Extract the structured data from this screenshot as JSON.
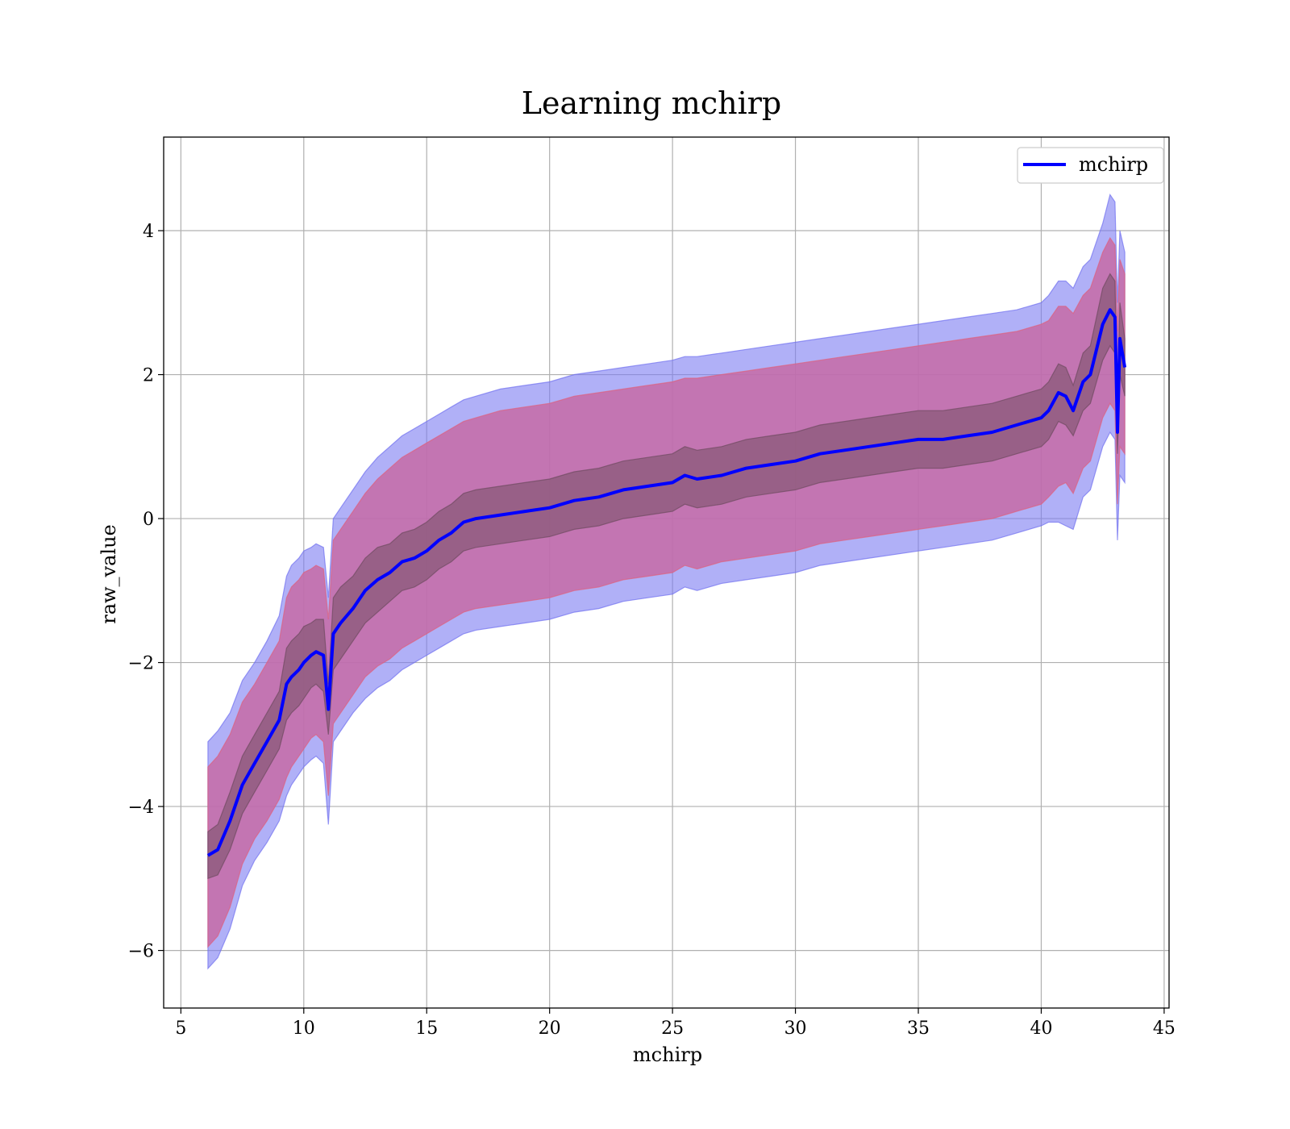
{
  "chart_data": {
    "type": "line",
    "title": "Learning mchirp",
    "xlabel": "mchirp",
    "ylabel": "raw_value",
    "xlim": [
      4.3,
      45.2
    ],
    "ylim": [
      -6.8,
      5.3
    ],
    "xticks": [
      5,
      10,
      15,
      20,
      25,
      30,
      35,
      40,
      45
    ],
    "yticks": [
      -6,
      -4,
      -2,
      0,
      2,
      4
    ],
    "xtick_labels": [
      "5",
      "10",
      "15",
      "20",
      "25",
      "30",
      "35",
      "40",
      "45"
    ],
    "ytick_labels": [
      "−6",
      "−4",
      "−2",
      "0",
      "2",
      "4"
    ],
    "grid": true,
    "legend": {
      "position": "upper-right",
      "entries": [
        {
          "label": "mchirp",
          "color": "#0000ff"
        }
      ]
    },
    "colors": {
      "line": "#0000ff",
      "band_outer": "#7b7bf2",
      "band_mid": "#c76ba6",
      "band_inner": "#8a5a78"
    },
    "series": [
      {
        "name": "mchirp",
        "x": [
          6.1,
          6.5,
          7.0,
          7.5,
          8.0,
          8.5,
          9.0,
          9.3,
          9.5,
          9.8,
          10.0,
          10.3,
          10.5,
          10.8,
          11.0,
          11.2,
          11.5,
          12.0,
          12.5,
          13.0,
          13.5,
          14.0,
          14.5,
          15.0,
          15.5,
          16.0,
          16.5,
          17.0,
          18.0,
          19.0,
          20.0,
          20.5,
          21.0,
          22.0,
          23.0,
          24.0,
          25.0,
          25.5,
          26.0,
          27.0,
          28.0,
          29.0,
          30.0,
          31.0,
          32.0,
          33.0,
          34.0,
          35.0,
          36.0,
          37.0,
          38.0,
          39.0,
          40.0,
          40.3,
          40.7,
          41.0,
          41.3,
          41.7,
          42.0,
          42.5,
          42.8,
          43.0,
          43.1,
          43.2,
          43.4
        ],
        "y": [
          -4.68,
          -4.6,
          -4.2,
          -3.7,
          -3.4,
          -3.1,
          -2.8,
          -2.3,
          -2.2,
          -2.1,
          -2.0,
          -1.9,
          -1.85,
          -1.9,
          -2.65,
          -1.6,
          -1.45,
          -1.25,
          -1.0,
          -0.85,
          -0.75,
          -0.6,
          -0.55,
          -0.45,
          -0.3,
          -0.2,
          -0.05,
          0.0,
          0.05,
          0.1,
          0.15,
          0.2,
          0.25,
          0.3,
          0.4,
          0.45,
          0.5,
          0.6,
          0.55,
          0.6,
          0.7,
          0.75,
          0.8,
          0.9,
          0.95,
          1.0,
          1.05,
          1.1,
          1.1,
          1.15,
          1.2,
          1.3,
          1.4,
          1.5,
          1.75,
          1.7,
          1.5,
          1.9,
          2.0,
          2.7,
          2.9,
          2.8,
          1.2,
          2.5,
          2.1
        ],
        "inner_lower": [
          -5.0,
          -4.95,
          -4.6,
          -4.1,
          -3.8,
          -3.5,
          -3.2,
          -2.8,
          -2.7,
          -2.6,
          -2.5,
          -2.35,
          -2.3,
          -2.4,
          -3.0,
          -2.1,
          -1.95,
          -1.7,
          -1.45,
          -1.3,
          -1.15,
          -1.0,
          -0.95,
          -0.85,
          -0.7,
          -0.6,
          -0.45,
          -0.4,
          -0.35,
          -0.3,
          -0.25,
          -0.2,
          -0.15,
          -0.1,
          0.0,
          0.05,
          0.1,
          0.2,
          0.15,
          0.2,
          0.3,
          0.35,
          0.4,
          0.5,
          0.55,
          0.6,
          0.65,
          0.7,
          0.7,
          0.75,
          0.8,
          0.9,
          1.0,
          1.1,
          1.35,
          1.3,
          1.15,
          1.5,
          1.6,
          2.2,
          2.4,
          2.3,
          0.9,
          2.0,
          1.7
        ],
        "inner_upper": [
          -4.35,
          -4.25,
          -3.8,
          -3.3,
          -3.0,
          -2.7,
          -2.4,
          -1.8,
          -1.7,
          -1.6,
          -1.5,
          -1.45,
          -1.4,
          -1.4,
          -2.3,
          -1.1,
          -0.95,
          -0.8,
          -0.55,
          -0.4,
          -0.35,
          -0.2,
          -0.15,
          -0.05,
          0.1,
          0.2,
          0.35,
          0.4,
          0.45,
          0.5,
          0.55,
          0.6,
          0.65,
          0.7,
          0.8,
          0.85,
          0.9,
          1.0,
          0.95,
          1.0,
          1.1,
          1.15,
          1.2,
          1.3,
          1.35,
          1.4,
          1.45,
          1.5,
          1.5,
          1.55,
          1.6,
          1.7,
          1.8,
          1.9,
          2.15,
          2.1,
          1.85,
          2.3,
          2.4,
          3.2,
          3.4,
          3.3,
          1.5,
          3.0,
          2.5
        ],
        "mid_lower": [
          -5.95,
          -5.8,
          -5.4,
          -4.8,
          -4.45,
          -4.2,
          -3.9,
          -3.6,
          -3.45,
          -3.3,
          -3.2,
          -3.05,
          -3.0,
          -3.1,
          -3.85,
          -2.85,
          -2.7,
          -2.45,
          -2.2,
          -2.05,
          -1.95,
          -1.8,
          -1.7,
          -1.6,
          -1.5,
          -1.4,
          -1.3,
          -1.25,
          -1.2,
          -1.15,
          -1.1,
          -1.05,
          -1.0,
          -0.95,
          -0.85,
          -0.8,
          -0.75,
          -0.65,
          -0.7,
          -0.6,
          -0.55,
          -0.5,
          -0.45,
          -0.35,
          -0.3,
          -0.25,
          -0.2,
          -0.15,
          -0.1,
          -0.05,
          0.0,
          0.1,
          0.2,
          0.3,
          0.45,
          0.5,
          0.35,
          0.7,
          0.8,
          1.4,
          1.6,
          1.5,
          0.2,
          1.0,
          0.9
        ],
        "mid_upper": [
          -3.45,
          -3.3,
          -3.0,
          -2.55,
          -2.3,
          -2.0,
          -1.7,
          -1.1,
          -0.95,
          -0.85,
          -0.75,
          -0.7,
          -0.65,
          -0.7,
          -1.4,
          -0.3,
          -0.15,
          0.1,
          0.35,
          0.55,
          0.7,
          0.85,
          0.95,
          1.05,
          1.15,
          1.25,
          1.35,
          1.4,
          1.5,
          1.55,
          1.6,
          1.65,
          1.7,
          1.75,
          1.8,
          1.85,
          1.9,
          1.95,
          1.95,
          2.0,
          2.05,
          2.1,
          2.15,
          2.2,
          2.25,
          2.3,
          2.35,
          2.4,
          2.45,
          2.5,
          2.55,
          2.6,
          2.7,
          2.75,
          2.95,
          2.95,
          2.85,
          3.1,
          3.2,
          3.7,
          3.9,
          3.8,
          2.6,
          3.6,
          3.4
        ],
        "outer_lower": [
          -6.25,
          -6.1,
          -5.7,
          -5.1,
          -4.75,
          -4.5,
          -4.2,
          -3.85,
          -3.7,
          -3.55,
          -3.45,
          -3.35,
          -3.3,
          -3.4,
          -4.25,
          -3.1,
          -2.95,
          -2.7,
          -2.5,
          -2.35,
          -2.25,
          -2.1,
          -2.0,
          -1.9,
          -1.8,
          -1.7,
          -1.6,
          -1.55,
          -1.5,
          -1.45,
          -1.4,
          -1.35,
          -1.3,
          -1.25,
          -1.15,
          -1.1,
          -1.05,
          -0.95,
          -1.0,
          -0.9,
          -0.85,
          -0.8,
          -0.75,
          -0.65,
          -0.6,
          -0.55,
          -0.5,
          -0.45,
          -0.4,
          -0.35,
          -0.3,
          -0.2,
          -0.1,
          -0.05,
          -0.05,
          -0.1,
          -0.15,
          0.3,
          0.4,
          1.0,
          1.2,
          1.1,
          -0.3,
          0.6,
          0.5
        ],
        "outer_upper": [
          -3.1,
          -2.95,
          -2.7,
          -2.25,
          -2.0,
          -1.7,
          -1.35,
          -0.8,
          -0.65,
          -0.55,
          -0.45,
          -0.4,
          -0.35,
          -0.4,
          -1.1,
          0.0,
          0.15,
          0.4,
          0.65,
          0.85,
          1.0,
          1.15,
          1.25,
          1.35,
          1.45,
          1.55,
          1.65,
          1.7,
          1.8,
          1.85,
          1.9,
          1.95,
          2.0,
          2.05,
          2.1,
          2.15,
          2.2,
          2.25,
          2.25,
          2.3,
          2.35,
          2.4,
          2.45,
          2.5,
          2.55,
          2.6,
          2.65,
          2.7,
          2.75,
          2.8,
          2.85,
          2.9,
          3.0,
          3.1,
          3.3,
          3.3,
          3.2,
          3.5,
          3.6,
          4.1,
          4.5,
          4.4,
          3.0,
          4.0,
          3.7
        ]
      }
    ]
  }
}
